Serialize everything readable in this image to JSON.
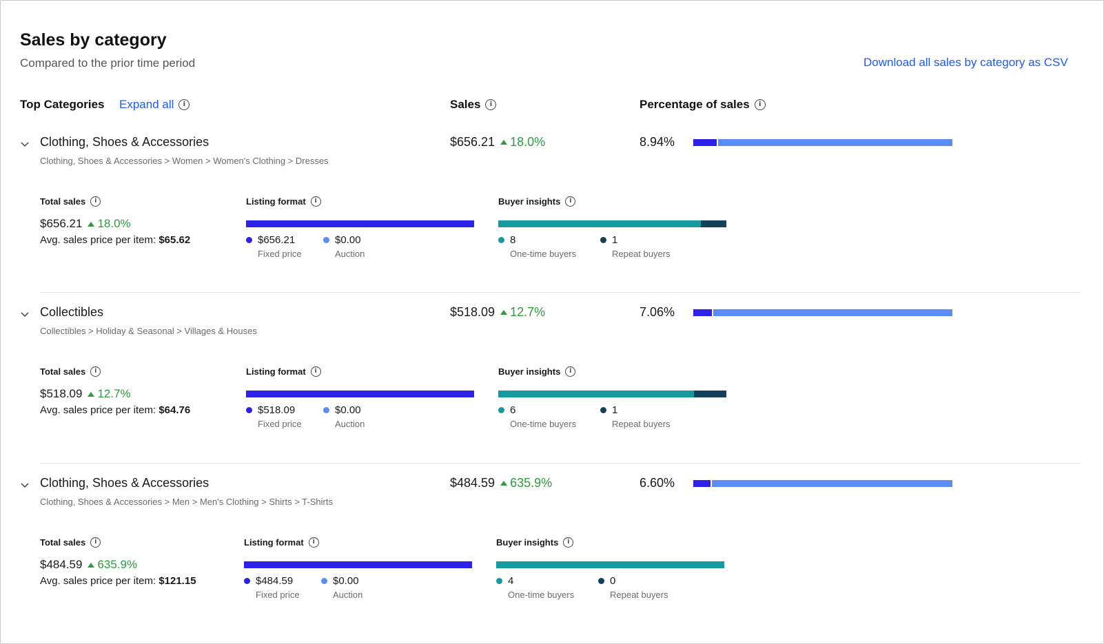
{
  "header": {
    "title": "Sales by category",
    "subtitle": "Compared to the prior time period",
    "csv_link": "Download all sales by category as CSV"
  },
  "columns": {
    "top_categories": "Top Categories",
    "expand_all": "Expand all",
    "sales": "Sales",
    "percentage": "Percentage of sales"
  },
  "labels": {
    "total_sales": "Total sales",
    "listing_format": "Listing format",
    "buyer_insights": "Buyer insights",
    "avg_price": "Avg. sales price per item:",
    "fixed_price": "Fixed price",
    "auction": "Auction",
    "one_time": "One-time buyers",
    "repeat": "Repeat buyers"
  },
  "colors": {
    "link": "#1c5bf0",
    "positive": "#2d9a3c",
    "fixed_price": "#2b21e8",
    "auction": "#5b8cf5",
    "one_time": "#16999f",
    "repeat": "#14405a"
  },
  "categories": [
    {
      "name": "Clothing, Shoes & Accessories",
      "breadcrumb": "Clothing, Shoes & Accessories > Women > Women's Clothing > Dresses",
      "sales": "$656.21",
      "change": "18.0%",
      "percentage": "8.94%",
      "percentage_value": 8.94,
      "total_sales": "$656.21",
      "avg_price": "$65.62",
      "fixed_price": "$656.21",
      "auction": "$0.00",
      "fixed_share": 1.0,
      "one_time_buyers": "8",
      "repeat_buyers": "1",
      "one_time_count": 8,
      "repeat_count": 1
    },
    {
      "name": "Collectibles",
      "breadcrumb": "Collectibles > Holiday & Seasonal > Villages & Houses",
      "sales": "$518.09",
      "change": "12.7%",
      "percentage": "7.06%",
      "percentage_value": 7.06,
      "total_sales": "$518.09",
      "avg_price": "$64.76",
      "fixed_price": "$518.09",
      "auction": "$0.00",
      "fixed_share": 1.0,
      "one_time_buyers": "6",
      "repeat_buyers": "1",
      "one_time_count": 6,
      "repeat_count": 1
    },
    {
      "name": "Clothing, Shoes & Accessories",
      "breadcrumb": "Clothing, Shoes & Accessories > Men > Men's Clothing > Shirts > T-Shirts",
      "sales": "$484.59",
      "change": "635.9%",
      "percentage": "6.60%",
      "percentage_value": 6.6,
      "total_sales": "$484.59",
      "avg_price": "$121.15",
      "fixed_price": "$484.59",
      "auction": "$0.00",
      "fixed_share": 1.0,
      "one_time_buyers": "4",
      "repeat_buyers": "0",
      "one_time_count": 4,
      "repeat_count": 0
    }
  ]
}
